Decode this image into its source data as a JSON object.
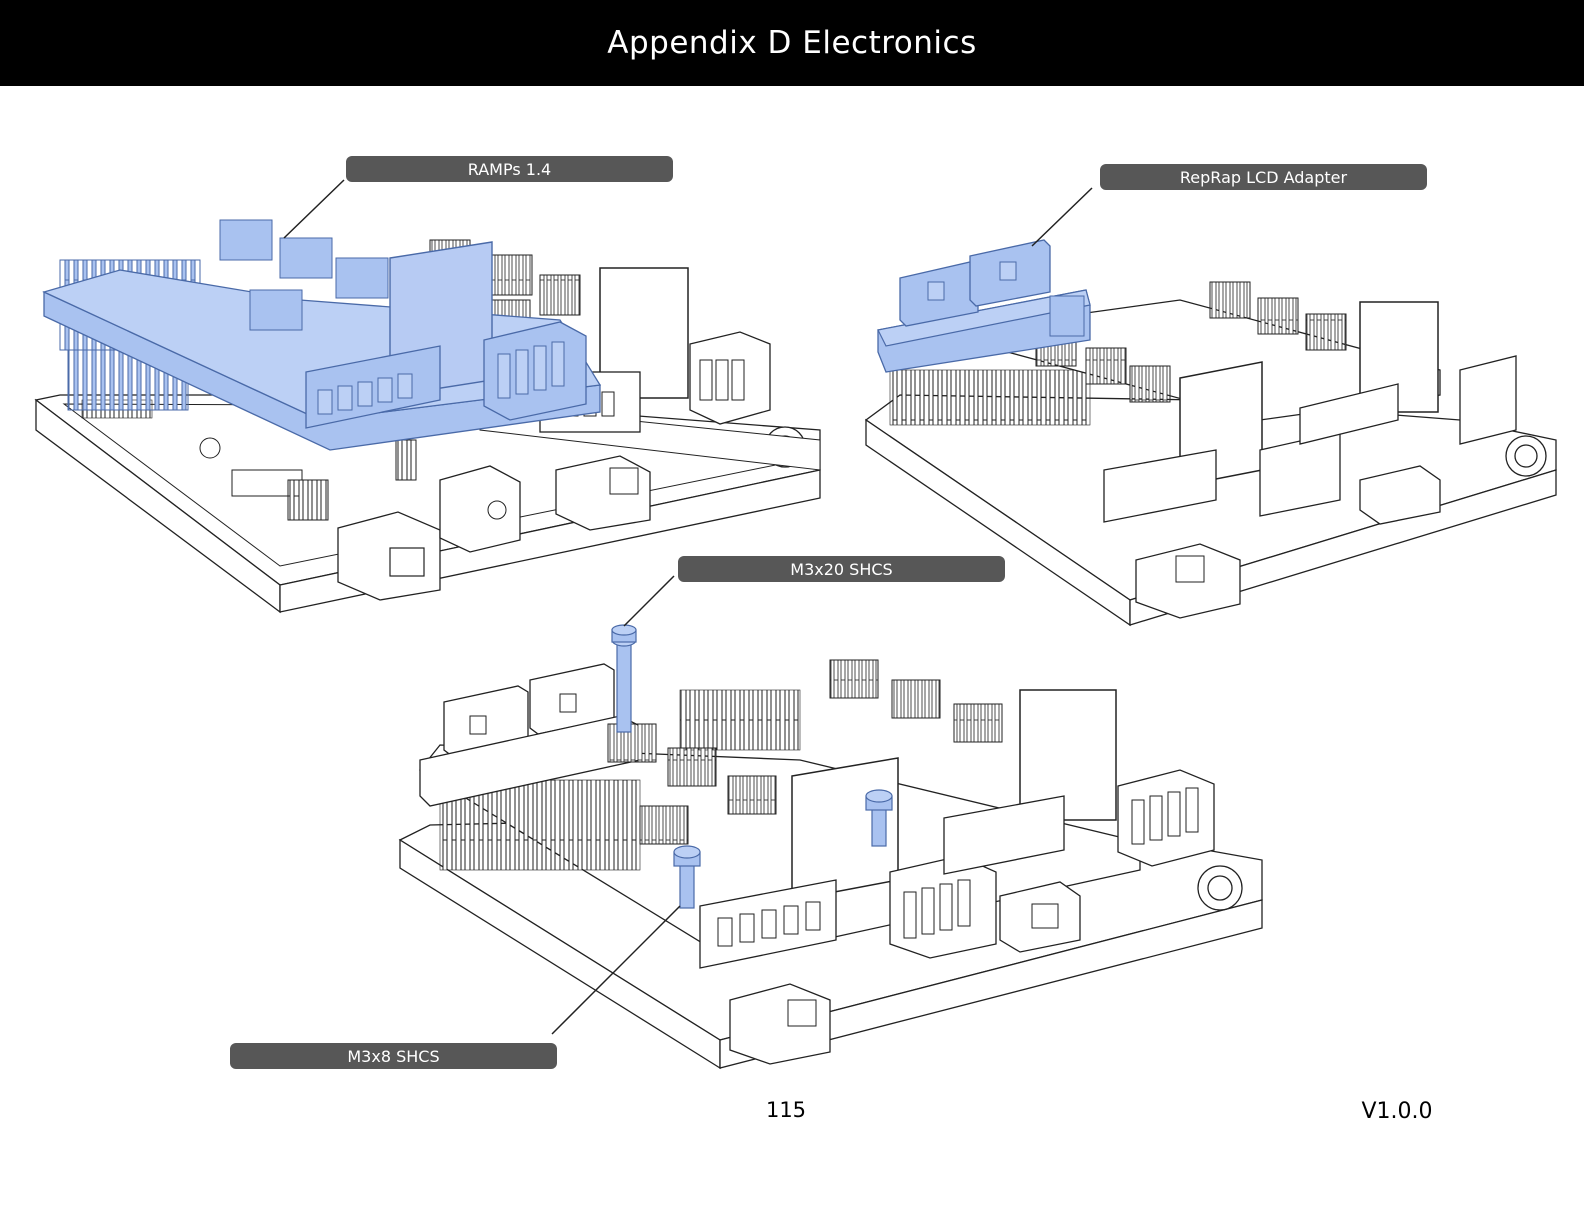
{
  "header": {
    "title": "Appendix D Electronics"
  },
  "callouts": {
    "ramps": "RAMPs 1.4",
    "lcd_adapter": "RepRap LCD Adapter",
    "m3x20": "M3x20 SHCS",
    "m3x8": "M3x8 SHCS"
  },
  "footer": {
    "page_number": "115",
    "version": "V1.0.0"
  },
  "colors": {
    "header_bg": "#000000",
    "label_bg": "#575757",
    "highlight": "#9db8ec"
  }
}
